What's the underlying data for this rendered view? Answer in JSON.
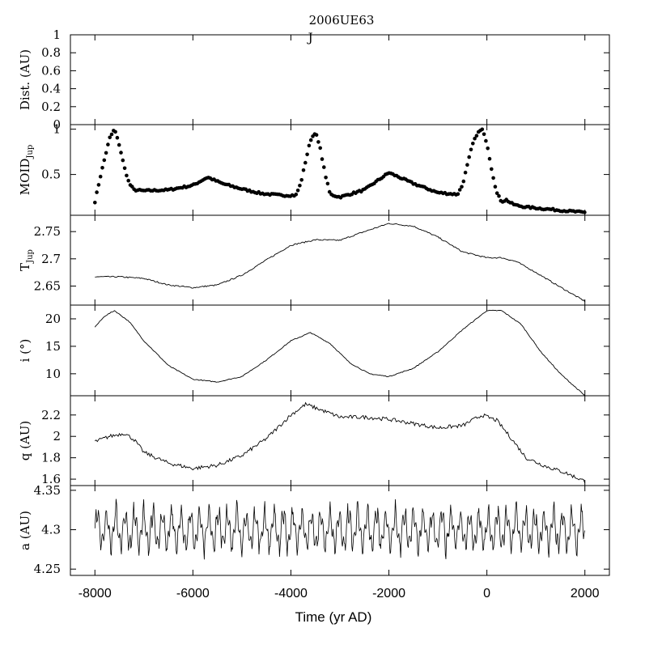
{
  "title": "2006UE63",
  "chart_data": {
    "type": "line",
    "xlabel": "Time (yr AD)",
    "xlim": [
      -8500,
      2500
    ],
    "xticks": [
      -8000,
      -6000,
      -4000,
      -2000,
      0,
      2000
    ],
    "xtick_labels": [
      "-8000",
      "-6000",
      "-4000",
      "-2000",
      "0",
      "2000"
    ],
    "panels": [
      {
        "id": "dist",
        "ylabel": "Dist. (AU)",
        "ylim": [
          0,
          1
        ],
        "yticks": [
          0,
          0.2,
          0.4,
          0.6,
          0.8,
          1
        ],
        "ytick_labels": [
          "0",
          "0.2",
          "0.4",
          "0.6",
          "0.8",
          "1"
        ],
        "annotations": [
          {
            "text": "J",
            "x": -3600,
            "y": 0.97
          }
        ],
        "series": []
      },
      {
        "id": "moid",
        "ylabel": "MOID",
        "ylabel_sub": "Jup",
        "ylim": [
          0.05,
          1.05
        ],
        "yticks": [
          0.5,
          1
        ],
        "ytick_labels": [
          "0.5",
          "1"
        ],
        "style": "dots",
        "series": [
          {
            "x": [
              -8000,
              -7900,
              -7800,
              -7700,
              -7600,
              -7500,
              -7400,
              -7300,
              -7200,
              -7000,
              -6500,
              -6000,
              -5700,
              -5400,
              -5000,
              -4600,
              -4200,
              -3900,
              -3800,
              -3700,
              -3600,
              -3500,
              -3400,
              -3300,
              -3200,
              -3000,
              -2500,
              -2000,
              -1500,
              -1000,
              -600,
              -500,
              -400,
              -300,
              -200,
              -100,
              0,
              100,
              200,
              300,
              400,
              500,
              600,
              800,
              1200,
              1600,
              2000
            ],
            "y": [
              0.2,
              0.45,
              0.68,
              0.9,
              1.0,
              0.82,
              0.58,
              0.4,
              0.33,
              0.32,
              0.33,
              0.38,
              0.47,
              0.4,
              0.34,
              0.29,
              0.27,
              0.27,
              0.4,
              0.65,
              0.88,
              0.97,
              0.78,
              0.5,
              0.28,
              0.25,
              0.33,
              0.52,
              0.4,
              0.3,
              0.28,
              0.38,
              0.6,
              0.82,
              0.95,
              1.0,
              0.85,
              0.55,
              0.3,
              0.2,
              0.22,
              0.18,
              0.16,
              0.14,
              0.12,
              0.1,
              0.08
            ]
          }
        ]
      },
      {
        "id": "tjup",
        "ylabel": "T",
        "ylabel_sub": "Jup",
        "ylim": [
          2.615,
          2.78
        ],
        "yticks": [
          2.65,
          2.7,
          2.75
        ],
        "ytick_labels": [
          "2.65",
          "2.7",
          "2.75"
        ],
        "style": "line",
        "noise": 0.0012,
        "series": [
          {
            "x": [
              -8000,
              -7500,
              -7000,
              -6500,
              -6000,
              -5500,
              -5000,
              -4500,
              -4000,
              -3500,
              -3000,
              -2500,
              -2000,
              -1500,
              -1000,
              -500,
              0,
              300,
              600,
              1000,
              1500,
              2000
            ],
            "y": [
              2.667,
              2.667,
              2.664,
              2.652,
              2.647,
              2.652,
              2.67,
              2.698,
              2.725,
              2.735,
              2.734,
              2.75,
              2.765,
              2.76,
              2.74,
              2.713,
              2.702,
              2.702,
              2.695,
              2.675,
              2.648,
              2.622
            ]
          }
        ]
      },
      {
        "id": "incl",
        "ylabel": "i (°)",
        "ylim": [
          6,
          22.5
        ],
        "yticks": [
          10,
          15,
          20
        ],
        "ytick_labels": [
          "10",
          "15",
          "20"
        ],
        "style": "line",
        "noise": 0.08,
        "series": [
          {
            "x": [
              -8000,
              -7800,
              -7600,
              -7300,
              -7000,
              -6500,
              -6000,
              -5500,
              -5000,
              -4500,
              -4000,
              -3600,
              -3200,
              -2800,
              -2400,
              -2000,
              -1500,
              -1000,
              -500,
              0,
              300,
              700,
              1100,
              1500,
              2000
            ],
            "y": [
              18.5,
              20.5,
              21.5,
              19.5,
              16.0,
              11.5,
              9.0,
              8.5,
              9.5,
              12.5,
              16.0,
              17.5,
              15.5,
              12.0,
              10.0,
              9.5,
              11.0,
              14.0,
              18.0,
              21.5,
              21.5,
              19.0,
              14.0,
              10.0,
              6.0
            ]
          }
        ]
      },
      {
        "id": "q",
        "ylabel": "q (AU)",
        "ylim": [
          1.54,
          2.38
        ],
        "yticks": [
          1.6,
          1.8,
          2,
          2.2
        ],
        "ytick_labels": [
          "1.6",
          "1.8",
          "2",
          "2.2"
        ],
        "style": "line",
        "noise": 0.018,
        "series": [
          {
            "x": [
              -8000,
              -7700,
              -7400,
              -7200,
              -7000,
              -6500,
              -6000,
              -5500,
              -5000,
              -4500,
              -4000,
              -3700,
              -3400,
              -3000,
              -2500,
              -2000,
              -1500,
              -1000,
              -500,
              -100,
              200,
              500,
              800,
              1200,
              1600,
              2000
            ],
            "y": [
              1.95,
              2.0,
              2.03,
              1.97,
              1.85,
              1.75,
              1.7,
              1.73,
              1.82,
              1.98,
              2.2,
              2.3,
              2.25,
              2.18,
              2.18,
              2.16,
              2.12,
              2.08,
              2.1,
              2.2,
              2.15,
              1.98,
              1.8,
              1.72,
              1.66,
              1.58
            ]
          }
        ]
      },
      {
        "id": "a",
        "ylabel": "a (AU)",
        "ylim": [
          4.242,
          4.356
        ],
        "yticks": [
          4.25,
          4.3,
          4.35
        ],
        "ytick_labels": [
          "4.25",
          "4.3",
          "4.35"
        ],
        "style": "oscillation",
        "series": [
          {
            "x_start": -8000,
            "x_end": 2000,
            "mean": 4.3,
            "amplitude": 0.025,
            "period_years": 190,
            "amplitude_max": 0.05
          }
        ]
      }
    ]
  }
}
